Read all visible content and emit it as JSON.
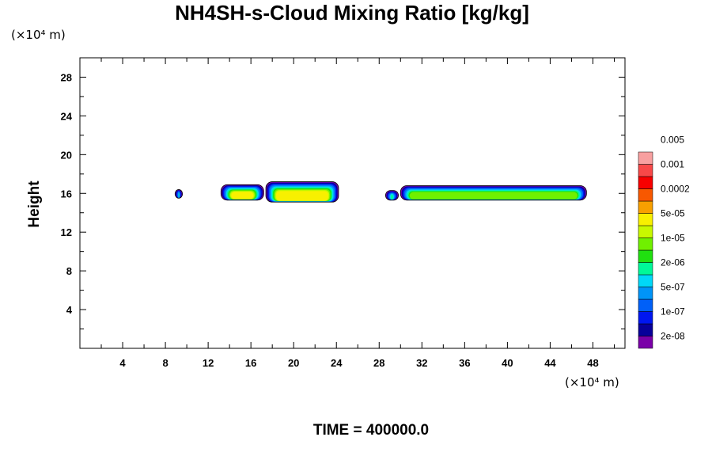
{
  "chart_data": {
    "type": "heatmap",
    "title": "NH4SH-s-Cloud Mixing Ratio [kg/kg]",
    "x_unit": "(×10⁴ m)",
    "y_unit": "(×10⁴ m)",
    "ylabel": "Height",
    "xlim": [
      0,
      51
    ],
    "ylim": [
      0,
      30
    ],
    "x_ticks": [
      4,
      8,
      12,
      16,
      20,
      24,
      28,
      32,
      36,
      40,
      44,
      48
    ],
    "y_ticks": [
      4,
      8,
      12,
      16,
      20,
      24,
      28
    ],
    "footer": "TIME = 400000.0",
    "colorbar": {
      "colors": [
        "#7a00a8",
        "#08009a",
        "#0016f0",
        "#0060f8",
        "#0094f8",
        "#00d8f8",
        "#00f898",
        "#20e010",
        "#70f000",
        "#c8f800",
        "#f8f000",
        "#f8a000",
        "#f85800",
        "#f80000",
        "#f84848",
        "#f8a0a0"
      ],
      "labels": [
        "2e-08",
        "1e-07",
        "5e-07",
        "2e-06",
        "1e-05",
        "5e-05",
        "0.0002",
        "0.001",
        "0.005"
      ]
    },
    "regions": [
      {
        "x_range": [
          8.9,
          9.6
        ],
        "y_range": [
          15.5,
          16.4
        ],
        "level": "5e-07"
      },
      {
        "x_range": [
          13.2,
          17.2
        ],
        "y_range": [
          15.3,
          16.9
        ],
        "level": "1e-05"
      },
      {
        "x_range": [
          17.4,
          24.2
        ],
        "y_range": [
          15.1,
          17.2
        ],
        "level": "1e-05"
      },
      {
        "x_range": [
          28.6,
          29.8
        ],
        "y_range": [
          15.3,
          16.3
        ],
        "level": "5e-07"
      },
      {
        "x_range": [
          30.0,
          47.4
        ],
        "y_range": [
          15.3,
          16.8
        ],
        "level": "2e-06"
      }
    ]
  }
}
